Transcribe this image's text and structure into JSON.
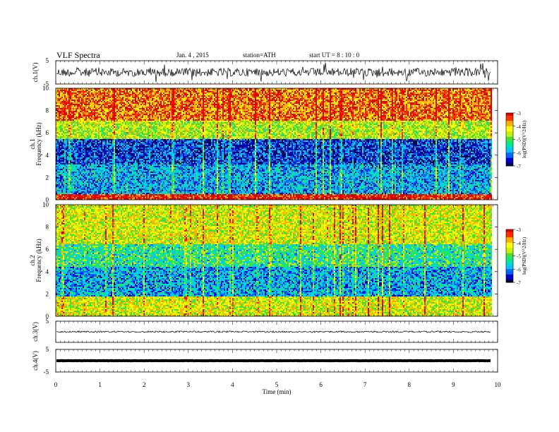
{
  "header": {
    "title": "VLF  Spectra",
    "date": "Jan.  4  ,  2015",
    "station": "station=ATH",
    "start": "start  UT  =   8  : 10 : 0"
  },
  "chart_data": {
    "type": "heatmap",
    "x_axis": {
      "label": "Time  (min)",
      "range": [
        0,
        10
      ],
      "ticks": [
        "0",
        "1",
        "2",
        "3",
        "4",
        "5",
        "6",
        "7",
        "8",
        "9",
        "10"
      ]
    },
    "panels": [
      {
        "kind": "waveform",
        "ylabel": "ch.1(V)",
        "yrange": [
          -5,
          5
        ],
        "yticks": [
          "5",
          "-5"
        ],
        "data_end_min": 9.85,
        "noise": "high"
      },
      {
        "kind": "spectrogram",
        "ylabel_channel": "ch.1",
        "ylabel_quantity": "Frequency  (kHz)",
        "yrange": [
          0,
          10
        ],
        "yticks": [
          "0",
          "2",
          "4",
          "6",
          "8",
          "10"
        ],
        "data_end_min": 9.85,
        "colorbar": {
          "label": "log(PSD)(V^2/Hz)",
          "range": [
            -7,
            -3
          ],
          "ticks": [
            "-3",
            "-4",
            "-5",
            "-6",
            "-7"
          ]
        },
        "bands_khz": [
          {
            "from": 0,
            "to": 0.6,
            "level": -3.2
          },
          {
            "from": 0.6,
            "to": 3.2,
            "level": -5.9
          },
          {
            "from": 3.2,
            "to": 5.5,
            "level": -6.4
          },
          {
            "from": 5.5,
            "to": 7.2,
            "level": -4.6
          },
          {
            "from": 7.2,
            "to": 10,
            "level": -3.6
          }
        ]
      },
      {
        "kind": "spectrogram",
        "ylabel_channel": "ch.2",
        "ylabel_quantity": "Frequency  (kHz)",
        "yrange": [
          0,
          10
        ],
        "yticks": [
          "0",
          "2",
          "4",
          "6",
          "8",
          "10"
        ],
        "data_end_min": 9.85,
        "colorbar": {
          "label": "log(PSD)(V^2/Hz)",
          "range": [
            -7,
            -3
          ],
          "ticks": [
            "-3",
            "-4",
            "-5",
            "-6",
            "-7"
          ]
        },
        "bands_khz": [
          {
            "from": 0,
            "to": 1.8,
            "level": -4.4
          },
          {
            "from": 1.8,
            "to": 4.5,
            "level": -5.9
          },
          {
            "from": 4.5,
            "to": 6.5,
            "level": -5.3
          },
          {
            "from": 6.5,
            "to": 10,
            "level": -4.4
          }
        ]
      },
      {
        "kind": "waveform",
        "ylabel": "ch.3(V)",
        "yrange": [
          -5,
          5
        ],
        "yticks": [
          "5"
        ],
        "data_end_min": 9.85,
        "noise": "low"
      },
      {
        "kind": "waveform",
        "ylabel": "ch.4(V)",
        "yrange": [
          -5,
          5
        ],
        "yticks": [
          "5",
          "-5"
        ],
        "data_end_min": 9.85,
        "noise": "flat"
      }
    ],
    "colorscale": [
      "#00003a",
      "#0000c8",
      "#0064ff",
      "#00c8ff",
      "#00e8a0",
      "#40e040",
      "#c8f000",
      "#ffff00",
      "#ffb000",
      "#ff3000",
      "#e00000"
    ]
  }
}
